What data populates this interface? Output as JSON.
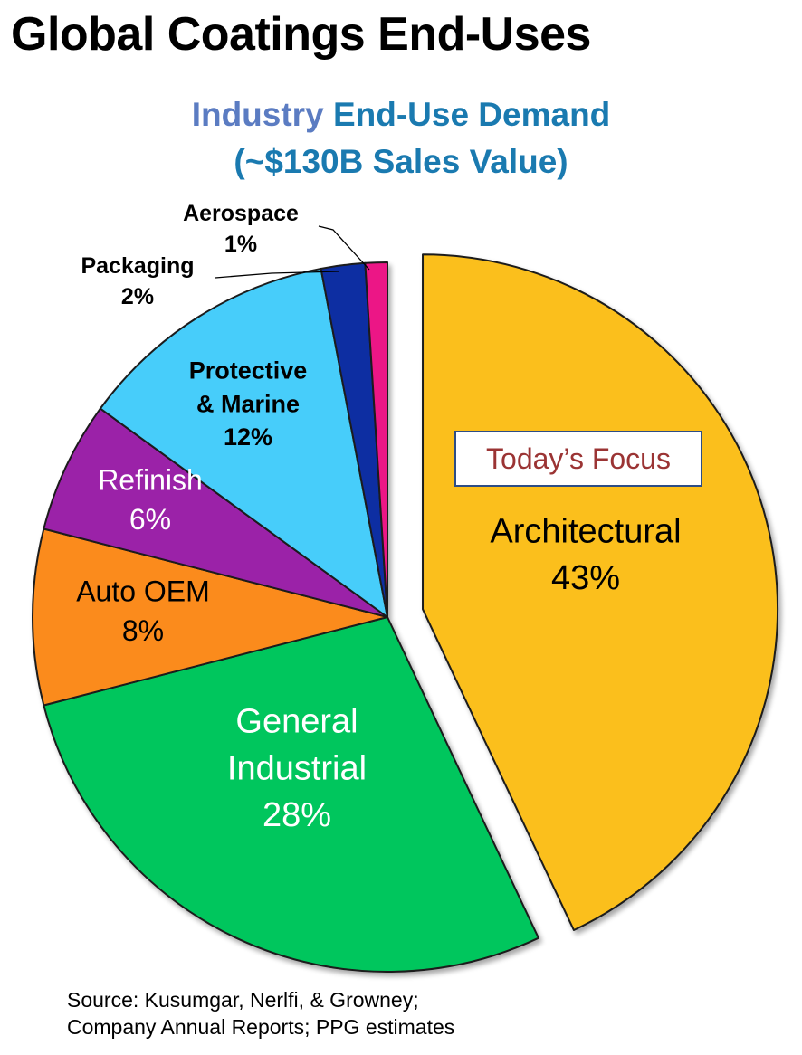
{
  "page": {
    "title": "Global Coatings End-Uses",
    "subtitle_line1_part1": "Industry",
    "subtitle_line1_part2": "End-Use Demand",
    "subtitle_line2": "(~$130B Sales Value)",
    "focus_label": "Today’s Focus",
    "source_line1": "Source: Kusumgar, Nerlfi, & Growney;",
    "source_line2": "Company Annual Reports; PPG estimates"
  },
  "colors": {
    "subtitle_part1": "#5b7cc2",
    "subtitle_part2": "#1a7ab0",
    "focus_text": "#9b3434",
    "focus_border": "#2d4d86"
  },
  "chart_data": {
    "type": "pie",
    "title": "",
    "exploded_slice": "Architectural",
    "slices": [
      {
        "name": "Architectural",
        "value": 43,
        "label": "43%",
        "color": "#fbbf1e"
      },
      {
        "name": "General Industrial",
        "value": 28,
        "label": "28%",
        "color": "#06c65d"
      },
      {
        "name": "Auto OEM",
        "value": 8,
        "label": "8%",
        "color": "#fb8b1c"
      },
      {
        "name": "Refinish",
        "value": 6,
        "label": "6%",
        "color": "#9b22a8"
      },
      {
        "name": "Protective & Marine",
        "value": 12,
        "label": "12%",
        "color": "#47cdfa"
      },
      {
        "name": "Packaging",
        "value": 2,
        "label": "2%",
        "color": "#0f2fa2"
      },
      {
        "name": "Aerospace",
        "value": 1,
        "label": "1%",
        "color": "#ec1486"
      }
    ]
  }
}
